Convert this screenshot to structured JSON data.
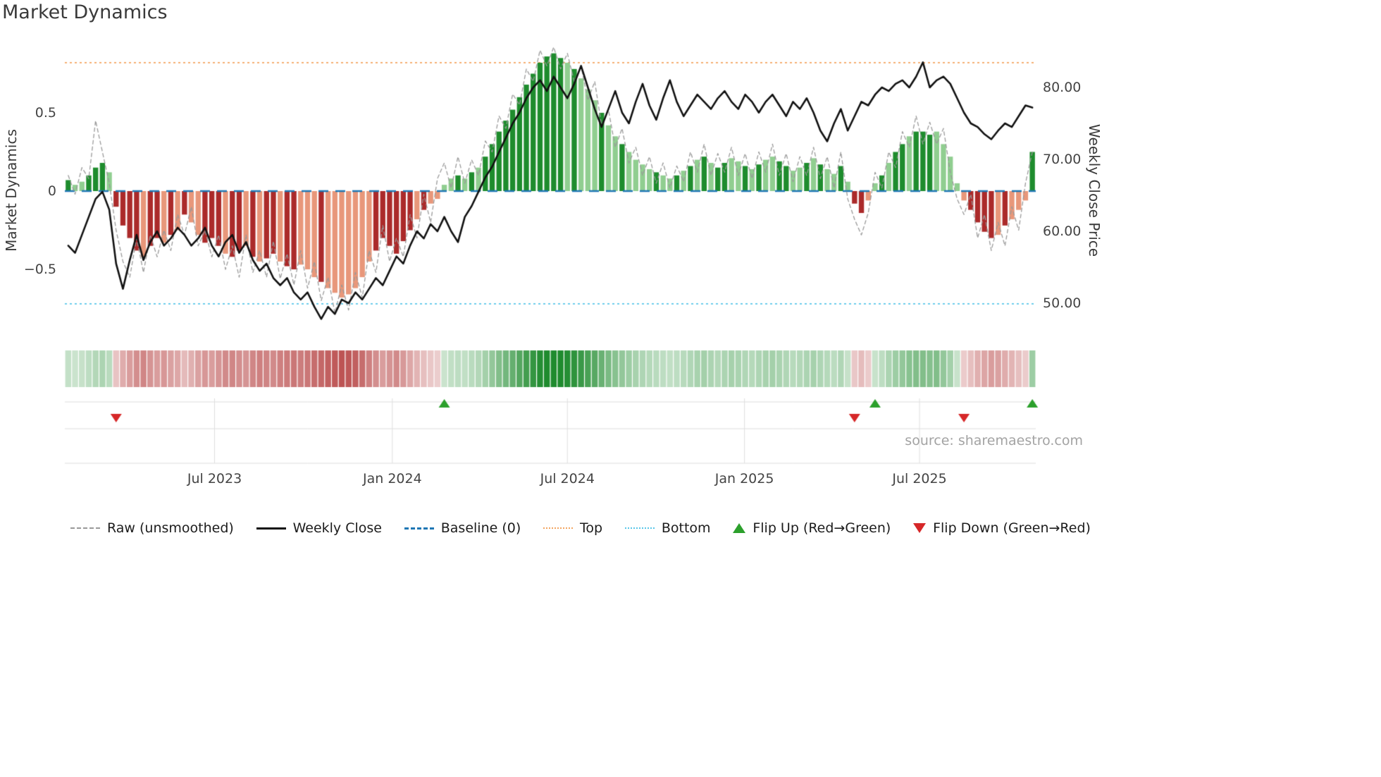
{
  "title": "Market Dynamics",
  "source": "source: sharemaestro.com",
  "axes": {
    "left_label": "Market Dynamics",
    "right_label": "Weekly Close Price",
    "left_ticks": [
      {
        "label": "0.5",
        "v": 0.5
      },
      {
        "label": "0",
        "v": 0
      },
      {
        "label": "−0.5",
        "v": -0.5
      }
    ],
    "right_ticks": [
      {
        "label": "80.00",
        "v": 80
      },
      {
        "label": "70.00",
        "v": 70
      },
      {
        "label": "60.00",
        "v": 60
      },
      {
        "label": "50.00",
        "v": 50
      }
    ],
    "x_ticks": [
      {
        "label": "Jul 2023",
        "week": 21.4
      },
      {
        "label": "Jan 2024",
        "week": 47.4
      },
      {
        "label": "Jul 2024",
        "week": 73.0
      },
      {
        "label": "Jan 2025",
        "week": 98.9
      },
      {
        "label": "Jul 2025",
        "week": 124.5
      }
    ]
  },
  "legend": [
    {
      "label": "Raw (unsmoothed)",
      "swatch": "dashed-line"
    },
    {
      "label": "Weekly Close",
      "swatch": "solid-line"
    },
    {
      "label": "Baseline (0)",
      "swatch": "long-dash-line"
    },
    {
      "label": "Top",
      "swatch": "dotted-top"
    },
    {
      "label": "Bottom",
      "swatch": "dotted-bottom"
    },
    {
      "label": "Flip Up (Red→Green)",
      "swatch": "triangle-up"
    },
    {
      "label": "Flip Down (Green→Red)",
      "swatch": "triangle-down"
    }
  ],
  "colors": {
    "bar_up_strong": "#1e8c2d",
    "bar_up_soft": "#90ce90",
    "bar_dn_strong": "#ab2a2a",
    "bar_dn_soft": "#e8977a",
    "heat_up": "#1f8b2e",
    "heat_dn": "#b03434",
    "raw": "#999999",
    "close": "#111111",
    "baseline": "#1f77b4",
    "top": "#f3a45f",
    "bottom": "#58c6e9",
    "flip_up": "#2ca02c",
    "flip_down": "#d62728",
    "grid": "#dedede"
  },
  "chart_data": {
    "type": "bar+line",
    "freq": "weekly",
    "x_start": "Feb 2023",
    "x_end": "Oct 2025",
    "baseline": 0,
    "top": 0.82,
    "bottom": -0.72,
    "left_axis_range": [
      -0.95,
      0.95
    ],
    "right_axis_range": [
      44,
      86
    ],
    "oscillator": [
      0.07,
      0.04,
      0.06,
      0.1,
      0.15,
      0.18,
      0.12,
      -0.1,
      -0.22,
      -0.3,
      -0.38,
      -0.42,
      -0.35,
      -0.3,
      -0.33,
      -0.28,
      -0.25,
      -0.15,
      -0.2,
      -0.28,
      -0.33,
      -0.3,
      -0.35,
      -0.4,
      -0.42,
      -0.38,
      -0.35,
      -0.42,
      -0.45,
      -0.43,
      -0.4,
      -0.45,
      -0.48,
      -0.5,
      -0.47,
      -0.5,
      -0.55,
      -0.58,
      -0.62,
      -0.65,
      -0.68,
      -0.66,
      -0.62,
      -0.55,
      -0.45,
      -0.38,
      -0.3,
      -0.35,
      -0.4,
      -0.32,
      -0.25,
      -0.18,
      -0.12,
      -0.08,
      -0.05,
      0.04,
      0.08,
      0.1,
      0.08,
      0.12,
      0.15,
      0.22,
      0.3,
      0.38,
      0.45,
      0.52,
      0.6,
      0.68,
      0.75,
      0.82,
      0.86,
      0.88,
      0.85,
      0.82,
      0.78,
      0.72,
      0.65,
      0.58,
      0.5,
      0.42,
      0.35,
      0.3,
      0.25,
      0.2,
      0.17,
      0.14,
      0.12,
      0.1,
      0.08,
      0.1,
      0.13,
      0.16,
      0.2,
      0.22,
      0.18,
      0.15,
      0.18,
      0.21,
      0.19,
      0.16,
      0.14,
      0.17,
      0.2,
      0.22,
      0.19,
      0.16,
      0.13,
      0.15,
      0.18,
      0.21,
      0.17,
      0.14,
      0.11,
      0.16,
      0.06,
      -0.08,
      -0.14,
      -0.06,
      0.05,
      0.1,
      0.18,
      0.25,
      0.3,
      0.35,
      0.38,
      0.38,
      0.36,
      0.38,
      0.3,
      0.22,
      0.05,
      -0.06,
      -0.12,
      -0.2,
      -0.26,
      -0.3,
      -0.28,
      -0.22,
      -0.18,
      -0.12,
      -0.06,
      0.25
    ],
    "raw": [
      0.1,
      -0.02,
      0.15,
      0.08,
      0.45,
      0.25,
      0.05,
      -0.25,
      -0.45,
      -0.55,
      -0.3,
      -0.52,
      -0.28,
      -0.42,
      -0.25,
      -0.38,
      -0.15,
      -0.28,
      -0.1,
      -0.35,
      -0.25,
      -0.42,
      -0.28,
      -0.5,
      -0.35,
      -0.55,
      -0.28,
      -0.52,
      -0.38,
      -0.55,
      -0.32,
      -0.56,
      -0.4,
      -0.6,
      -0.38,
      -0.62,
      -0.45,
      -0.7,
      -0.55,
      -0.78,
      -0.6,
      -0.76,
      -0.52,
      -0.68,
      -0.38,
      -0.52,
      -0.22,
      -0.45,
      -0.3,
      -0.42,
      -0.15,
      -0.3,
      -0.02,
      -0.2,
      0.08,
      0.18,
      0.02,
      0.22,
      0.05,
      0.2,
      0.1,
      0.32,
      0.25,
      0.48,
      0.4,
      0.62,
      0.55,
      0.78,
      0.7,
      0.9,
      0.8,
      0.92,
      0.78,
      0.88,
      0.7,
      0.8,
      0.58,
      0.7,
      0.42,
      0.52,
      0.28,
      0.4,
      0.18,
      0.28,
      0.1,
      0.22,
      0.05,
      0.18,
      0.02,
      0.16,
      0.06,
      0.25,
      0.12,
      0.3,
      0.1,
      0.24,
      0.12,
      0.28,
      0.1,
      0.24,
      0.08,
      0.25,
      0.12,
      0.3,
      0.1,
      0.24,
      0.06,
      0.22,
      0.1,
      0.28,
      0.08,
      0.22,
      0.02,
      0.25,
      -0.05,
      -0.18,
      -0.28,
      -0.14,
      0.12,
      0.02,
      0.25,
      0.15,
      0.38,
      0.28,
      0.48,
      0.3,
      0.44,
      0.3,
      0.4,
      0.12,
      -0.05,
      -0.15,
      -0.02,
      -0.3,
      -0.15,
      -0.38,
      -0.2,
      -0.35,
      -0.1,
      -0.25,
      0.05,
      0.25
    ],
    "weekly_close": [
      58.0,
      57.0,
      59.5,
      62.0,
      64.5,
      65.5,
      63.0,
      55.5,
      52.0,
      56.0,
      59.5,
      56.0,
      58.5,
      60.0,
      58.0,
      59.0,
      60.5,
      59.5,
      58.0,
      59.0,
      60.5,
      58.0,
      56.5,
      58.5,
      59.5,
      57.0,
      58.5,
      56.0,
      54.5,
      55.5,
      53.5,
      52.5,
      53.5,
      51.5,
      50.5,
      51.5,
      49.5,
      47.8,
      49.5,
      48.5,
      50.5,
      50.0,
      51.5,
      50.5,
      52.0,
      53.5,
      52.5,
      54.5,
      56.5,
      55.5,
      58.0,
      60.0,
      59.0,
      61.0,
      60.0,
      62.0,
      60.0,
      58.5,
      62.0,
      63.5,
      65.5,
      67.5,
      69.0,
      71.0,
      73.0,
      75.0,
      76.5,
      78.5,
      80.0,
      81.0,
      79.5,
      81.5,
      80.0,
      78.5,
      80.5,
      83.0,
      80.0,
      77.0,
      74.5,
      77.0,
      79.5,
      76.5,
      75.0,
      78.0,
      80.5,
      77.5,
      75.5,
      78.5,
      81.0,
      78.0,
      76.0,
      77.5,
      79.0,
      78.0,
      77.0,
      78.5,
      79.5,
      78.0,
      77.0,
      79.0,
      78.0,
      76.5,
      78.0,
      79.0,
      77.5,
      76.0,
      78.0,
      77.0,
      78.5,
      76.5,
      74.0,
      72.5,
      75.0,
      77.0,
      74.0,
      76.0,
      78.0,
      77.5,
      79.0,
      80.0,
      79.5,
      80.5,
      81.0,
      80.0,
      81.5,
      83.5,
      80.0,
      81.0,
      81.5,
      80.5,
      78.5,
      76.5,
      75.0,
      74.5,
      73.5,
      72.8,
      74.0,
      75.0,
      74.5,
      76.0,
      77.5,
      77.2
    ],
    "shade_groups": [
      "1001110",
      "1111011",
      "0101001",
      "1101101",
      "0110110",
      "0010000",
      "0001111",
      "1101000",
      "0101011",
      "1111111",
      "1110100",
      "0100100",
      "0010010",
      "1010110",
      "0101001",
      "1001010",
      "0101100",
      "1011011",
      "1000001",
      "1110100",
      "01"
    ],
    "flip_up_weeks": [
      55,
      118,
      141
    ],
    "flip_down_weeks": [
      7,
      115,
      131
    ]
  }
}
